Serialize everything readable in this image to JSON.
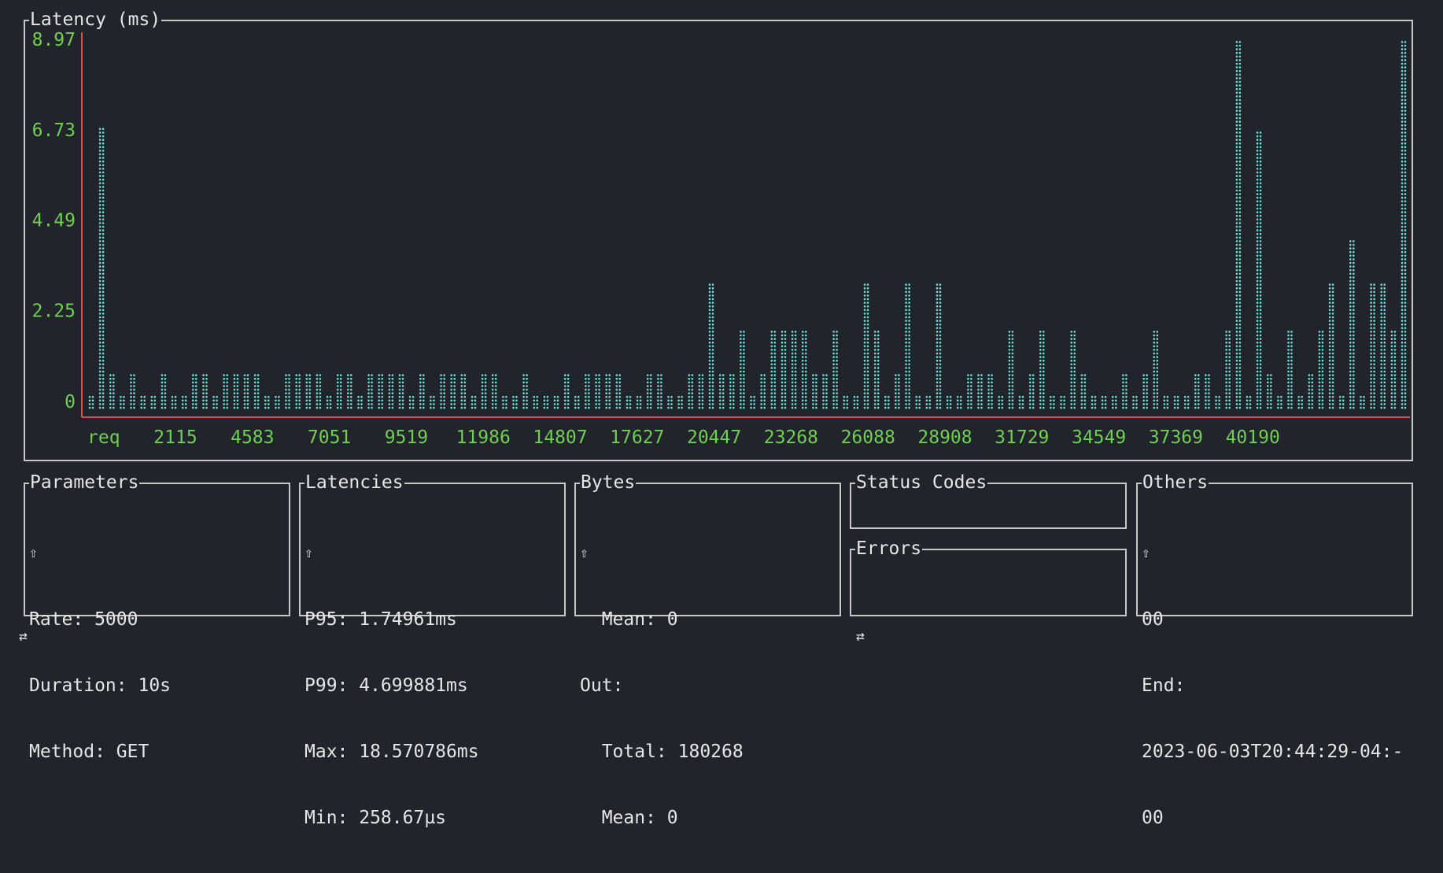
{
  "chart_data": {
    "type": "bar",
    "title": "Latency (ms)",
    "xlabel": "",
    "ylabel": "",
    "x_start_label": "req",
    "x_ticks": [
      "2115",
      "4583",
      "7051",
      "9519",
      "11986",
      "14807",
      "17627",
      "20447",
      "23268",
      "26088",
      "28908",
      "31729",
      "34549",
      "37369",
      "40190"
    ],
    "y_ticks": [
      "8.97",
      "6.73",
      "4.49",
      "2.25",
      "0"
    ],
    "ylim": [
      0,
      8.97
    ],
    "grid": false,
    "legend": "none",
    "values": [
      0.2,
      6.8,
      0.7,
      0.2,
      0.7,
      0.2,
      0.2,
      0.7,
      0.2,
      0.2,
      0.7,
      0.7,
      0.2,
      0.7,
      0.7,
      0.7,
      0.7,
      0.2,
      0.2,
      0.7,
      0.7,
      0.7,
      0.7,
      0.2,
      0.7,
      0.7,
      0.2,
      0.7,
      0.7,
      0.7,
      0.7,
      0.2,
      0.7,
      0.2,
      0.7,
      0.7,
      0.7,
      0.2,
      0.7,
      0.7,
      0.2,
      0.2,
      0.7,
      0.2,
      0.2,
      0.2,
      0.7,
      0.2,
      0.7,
      0.7,
      0.7,
      0.7,
      0.2,
      0.2,
      0.7,
      0.7,
      0.2,
      0.2,
      0.7,
      0.7,
      2.9,
      0.7,
      0.7,
      1.8,
      0.2,
      0.7,
      1.8,
      1.8,
      1.8,
      1.8,
      0.7,
      0.7,
      1.8,
      0.2,
      0.2,
      2.9,
      1.8,
      0.2,
      0.7,
      2.9,
      0.2,
      0.2,
      2.9,
      0.2,
      0.2,
      0.7,
      0.7,
      0.7,
      0.2,
      1.8,
      0.2,
      0.7,
      1.8,
      0.2,
      0.2,
      1.8,
      0.7,
      0.2,
      0.2,
      0.2,
      0.7,
      0.2,
      0.7,
      1.8,
      0.2,
      0.2,
      0.2,
      0.7,
      0.7,
      0.2,
      1.8,
      8.97,
      0.2,
      6.7,
      0.7,
      0.2,
      1.8,
      0.2,
      0.7,
      1.8,
      2.9,
      0.2,
      4.0,
      0.2,
      2.9,
      2.9,
      1.8,
      8.97
    ],
    "color": "#6ee0d6"
  },
  "colors": {
    "background": "#21252b",
    "axis": "#d9534f",
    "tick_labels": "#6fcf51",
    "bars": "#6ee0d6",
    "border": "#c8c8c8",
    "text": "#e6e6e6"
  },
  "panels": {
    "parameters": {
      "title": "Parameters",
      "arrow": "⇧",
      "lines": [
        "Rate: 5000",
        "Duration: 10s",
        "Method: GET"
      ]
    },
    "latencies": {
      "title": "Latencies",
      "arrow": "⇧",
      "lines": [
        "P95: 1.74961ms",
        "P99: 4.699881ms",
        "Max: 18.570786ms",
        "Min: 258.67µs"
      ]
    },
    "bytes": {
      "title": "Bytes",
      "arrow": "⇧",
      "lines": [
        "  Mean: 0",
        "Out:",
        "  Total: 180268",
        "  Mean: 0"
      ]
    },
    "status_codes": {
      "title": "Status Codes"
    },
    "errors": {
      "title": "Errors"
    },
    "others": {
      "title": "Others",
      "arrow": "⇧",
      "lines": [
        "00",
        "End:",
        "2023-06-03T20:44:29-04:-",
        "00"
      ]
    }
  },
  "footer": {
    "left_icon": "⇄",
    "right_icon": "⇄"
  }
}
